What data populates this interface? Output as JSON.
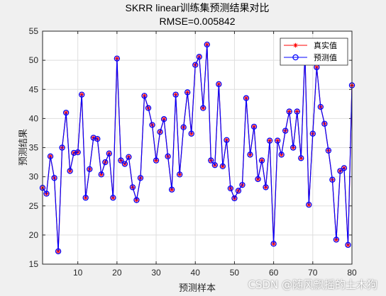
{
  "chart_data": {
    "type": "line",
    "title": "SKRR linear训练集预测结果对比",
    "subtitle": "RMSE=0.005842",
    "xlabel": "预测样本",
    "ylabel": "预测结果",
    "xlim": [
      1,
      80
    ],
    "ylim": [
      15,
      55
    ],
    "xticks": [
      10,
      20,
      30,
      40,
      50,
      60,
      70,
      80
    ],
    "yticks": [
      15,
      20,
      25,
      30,
      35,
      40,
      45,
      50,
      55
    ],
    "grid": true,
    "legend_position": "top-right",
    "x": [
      1,
      2,
      3,
      4,
      5,
      6,
      7,
      8,
      9,
      10,
      11,
      12,
      13,
      14,
      15,
      16,
      17,
      18,
      19,
      20,
      21,
      22,
      23,
      24,
      25,
      26,
      27,
      28,
      29,
      30,
      31,
      32,
      33,
      34,
      35,
      36,
      37,
      38,
      39,
      40,
      41,
      42,
      43,
      44,
      45,
      46,
      47,
      48,
      49,
      50,
      51,
      52,
      53,
      54,
      55,
      56,
      57,
      58,
      59,
      60,
      61,
      62,
      63,
      64,
      65,
      66,
      67,
      68,
      69,
      70,
      71,
      72,
      73,
      74,
      75,
      76,
      77,
      78,
      79,
      80
    ],
    "series": [
      {
        "name": "真实值",
        "color": "#ff0000",
        "marker": "asterisk",
        "values": [
          28.1,
          27.1,
          33.5,
          29.8,
          17.2,
          35.0,
          41.0,
          31.0,
          34.1,
          34.2,
          44.1,
          26.4,
          31.3,
          36.7,
          36.5,
          30.4,
          32.5,
          34.0,
          26.4,
          50.3,
          32.8,
          32.2,
          33.4,
          28.2,
          26.0,
          29.8,
          43.9,
          41.8,
          38.9,
          32.8,
          37.7,
          39.9,
          33.5,
          27.8,
          44.1,
          30.4,
          38.5,
          44.5,
          37.4,
          49.2,
          50.6,
          41.8,
          52.7,
          32.8,
          32.0,
          45.9,
          31.8,
          36.3,
          28.0,
          26.3,
          27.6,
          28.6,
          43.5,
          33.8,
          38.6,
          29.6,
          32.8,
          28.2,
          36.2,
          18.5,
          36.2,
          33.8,
          37.9,
          41.2,
          35.0,
          41.2,
          33.2,
          51.2,
          25.2,
          37.4,
          48.8,
          42.0,
          39.1,
          34.5,
          29.5,
          19.2,
          31.0,
          31.5,
          18.3,
          45.7
        ]
      },
      {
        "name": "预测值",
        "color": "#0000ff",
        "marker": "circle",
        "values": [
          28.1,
          27.1,
          33.5,
          29.8,
          17.2,
          35.0,
          41.0,
          31.0,
          34.1,
          34.2,
          44.1,
          26.4,
          31.3,
          36.7,
          36.5,
          30.4,
          32.5,
          34.0,
          26.4,
          50.3,
          32.8,
          32.2,
          33.4,
          28.2,
          26.0,
          29.8,
          43.9,
          41.8,
          38.9,
          32.8,
          37.7,
          39.9,
          33.5,
          27.8,
          44.1,
          30.4,
          38.5,
          44.5,
          37.4,
          49.2,
          50.6,
          41.8,
          52.7,
          32.8,
          32.0,
          45.9,
          31.8,
          36.3,
          28.0,
          26.3,
          27.6,
          28.6,
          43.5,
          33.8,
          38.6,
          29.6,
          32.8,
          28.2,
          36.2,
          18.5,
          36.2,
          33.8,
          37.9,
          41.2,
          35.0,
          41.2,
          33.2,
          51.2,
          25.2,
          37.4,
          48.8,
          42.0,
          39.1,
          34.5,
          29.5,
          19.2,
          31.0,
          31.5,
          18.3,
          45.7
        ]
      }
    ]
  },
  "watermark": "CSDN @随风飘摇的土木狗"
}
